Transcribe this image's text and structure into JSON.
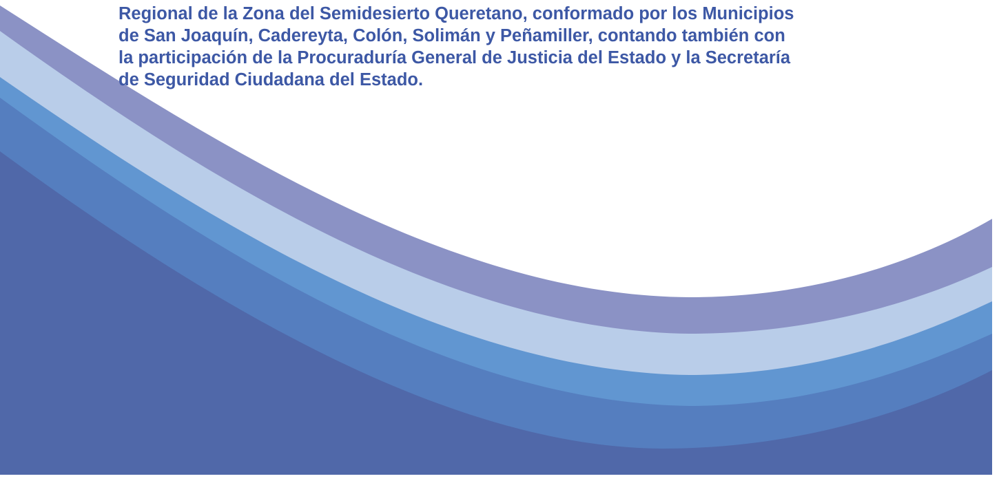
{
  "body": {
    "lines": [
      "Regional de la Zona del Semidesierto Queretano, conformado por los Municipios",
      "de San Joaquín, Cadereyta, Colón, Solimán y Peñamiller, contando también con",
      "la participación de la Procuraduría General de Justicia del Estado y la Secretaría",
      "de Seguridad Ciudadana del Estado."
    ]
  }
}
